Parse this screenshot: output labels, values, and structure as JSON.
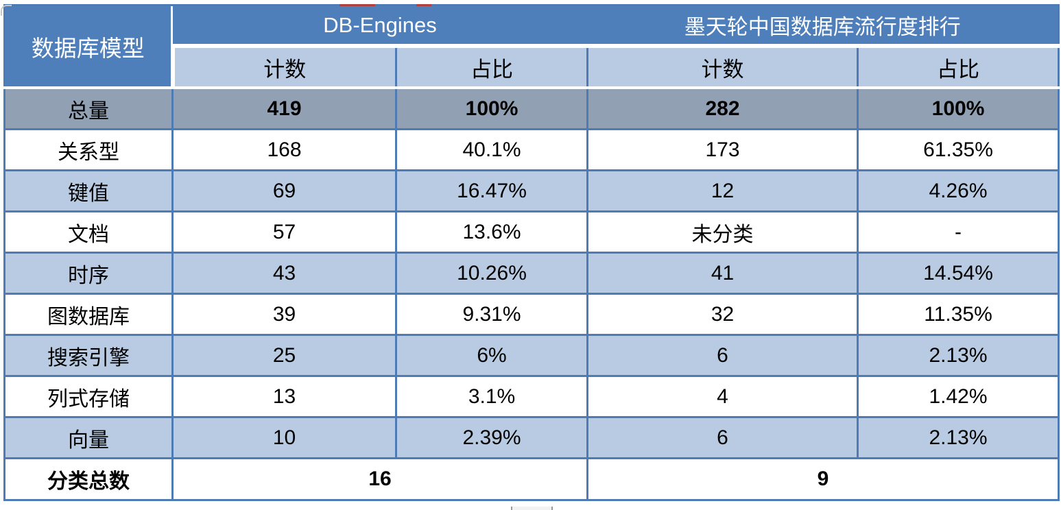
{
  "chart_data": {
    "type": "table",
    "column_groups": [
      {
        "label": "数据库模型",
        "span": 1
      },
      {
        "label": "DB-Engines",
        "span": 2
      },
      {
        "label": "墨天轮中国数据库流行度排行",
        "span": 2
      }
    ],
    "sub_headers": [
      "计数",
      "占比",
      "计数",
      "占比"
    ],
    "rows": [
      {
        "label": "总量",
        "values": [
          "419",
          "100%",
          "282",
          "100%"
        ],
        "emphasis": "total"
      },
      {
        "label": "关系型",
        "values": [
          "168",
          "40.1%",
          "173",
          "61.35%"
        ]
      },
      {
        "label": "键值",
        "values": [
          "69",
          "16.47%",
          "12",
          "4.26%"
        ]
      },
      {
        "label": "文档",
        "values": [
          "57",
          "13.6%",
          "未分类",
          "-"
        ]
      },
      {
        "label": "时序",
        "values": [
          "43",
          "10.26%",
          "41",
          "14.54%"
        ]
      },
      {
        "label": "图数据库",
        "values": [
          "39",
          "9.31%",
          "32",
          "11.35%"
        ]
      },
      {
        "label": "搜索引擎",
        "values": [
          "25",
          "6%",
          "6",
          "2.13%"
        ]
      },
      {
        "label": "列式存储",
        "values": [
          "13",
          "3.1%",
          "4",
          "1.42%"
        ]
      },
      {
        "label": "向量",
        "values": [
          "10",
          "2.39%",
          "6",
          "2.13%"
        ]
      }
    ],
    "footer_row": {
      "label": "分类总数",
      "values": [
        "16",
        "9"
      ]
    }
  },
  "colors": {
    "header_blue": "#4e7fba",
    "border_blue": "#4e7bb3",
    "light_blue_row": "#b8cbe3",
    "total_row_gray": "#92a0b3",
    "header_text": "#ffffff",
    "body_text": "#000000",
    "crop_artifact_red": "#b2403e"
  }
}
